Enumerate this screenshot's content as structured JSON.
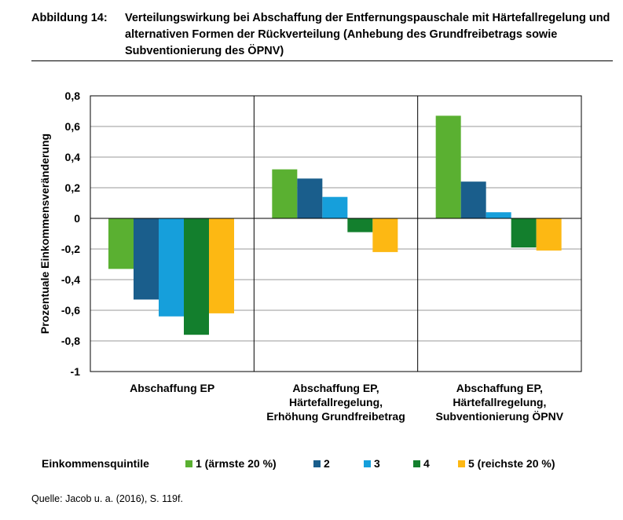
{
  "figure": {
    "label": "Abbildung 14:",
    "title": "Verteilungswirkung bei Abschaffung der Entfernungspauschale mit Härtefallregelung und alternativen Formen der Rückverteilung (Anhebung des Grundfreibetrags sowie Subventionierung des ÖPNV)",
    "source": "Quelle: Jacob u. a. (2016), S. 119f."
  },
  "chart_data": {
    "type": "bar",
    "title": "",
    "ylabel": "Prozentuale Einkommensveränderung",
    "xlabel": "",
    "ylim": [
      -1,
      0.8
    ],
    "ytick_values": [
      0.8,
      0.6,
      0.4,
      0.2,
      0,
      -0.2,
      -0.4,
      -0.6,
      -0.8,
      -1
    ],
    "ytick_labels": [
      "0,8",
      "0,6",
      "0,4",
      "0,2",
      "0",
      "-0,2",
      "-0,4",
      "-0,6",
      "-0,8",
      "-1"
    ],
    "grid": true,
    "legend_position": "bottom",
    "legend_title": "Einkommensquintile",
    "categories": [
      [
        "Abschaffung EP"
      ],
      [
        "Abschaffung EP,",
        "Härtefallregelung,",
        "Erhöhung Grundfreibetrag"
      ],
      [
        "Abschaffung EP,",
        "Härtefallregelung,",
        "Subventionierung ÖPNV"
      ]
    ],
    "series": [
      {
        "name": "1 (ärmste 20 %)",
        "color": "#5ab031",
        "values": [
          -0.33,
          0.32,
          0.67
        ]
      },
      {
        "name": "2",
        "color": "#1a5e8c",
        "values": [
          -0.53,
          0.26,
          0.24
        ]
      },
      {
        "name": "3",
        "color": "#169fdb",
        "values": [
          -0.64,
          0.14,
          0.04
        ]
      },
      {
        "name": "4",
        "color": "#137f2d",
        "values": [
          -0.76,
          -0.09,
          -0.19
        ]
      },
      {
        "name": "5 (reichste 20 %)",
        "color": "#fdb813",
        "values": [
          -0.62,
          -0.22,
          -0.21
        ]
      }
    ]
  }
}
